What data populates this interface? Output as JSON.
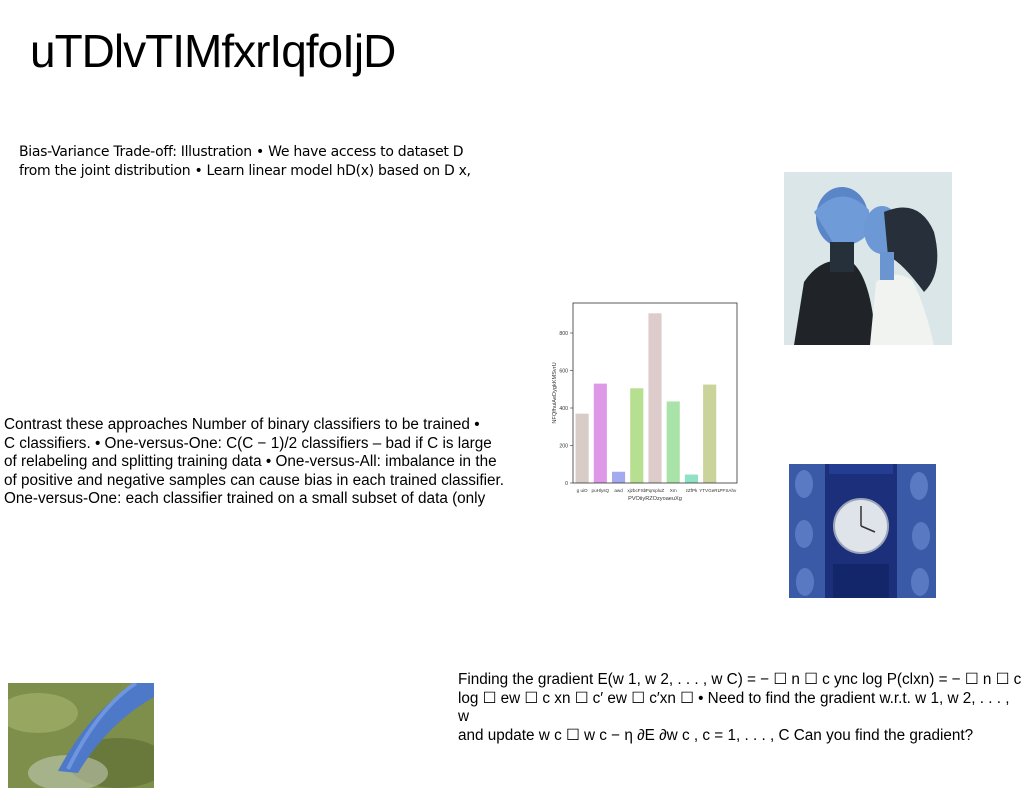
{
  "page": {
    "title": "uTDlvTIMfxrIqfoIjD",
    "paragraphs": {
      "bias_variance": "Bias-Variance Trade-off: Illustration • We have access to dataset D\nfrom the joint distribution • Learn linear model hD(x) based on D x,",
      "ovo_ova": "Contrast these approaches Number of binary classifiers to be trained •\nC classifiers. • One-versus-One: C(C − 1)/2 classifiers – bad if C is large\nof relabeling and splitting training data • One-versus-All: imbalance in the\nof positive and negative samples can cause bias in each trained classifier.\nOne-versus-One: each classifier trained on a small subset of data (only",
      "gradient": "Finding the gradient E(w 1, w 2, . . . , w C) = − ☐ n ☐ c ync log P(clxn) = − ☐ n ☐ c\nlog ☐ ew ☐ c xn ☐ c′ ew ☐ c′xn ☐ • Need to find the gradient w.r.t. w 1, w 2, . . . , w\nand update w c ☐ w c − η ∂E ∂w c , c = 1, . . . , C Can you find the gradient?"
    }
  },
  "chart_data": {
    "type": "bar",
    "categories": [
      "g uiO",
      "puHlysQ",
      "awd",
      "xjzbcFSb",
      "PqmpluZ",
      "Xm",
      "zZfPk",
      "YTVGeRL",
      "PFSAhv"
    ],
    "values": [
      370,
      530,
      60,
      505,
      905,
      435,
      45,
      525,
      0
    ],
    "bar_colors": [
      "#d8ccc6",
      "#dd99e8",
      "#a3aaf0",
      "#b6e08f",
      "#decccc",
      "#a9e3a7",
      "#8fe3c4",
      "#c9d39a",
      "#c9d39a"
    ],
    "xlabel": "PVOiiyRZOzyoaeuXg",
    "ylabel": "NFQfhuiAeDygkKMSvrU",
    "yticks": [
      "0",
      "200",
      "400",
      "600",
      "800"
    ],
    "ylim": [
      0,
      960
    ]
  }
}
